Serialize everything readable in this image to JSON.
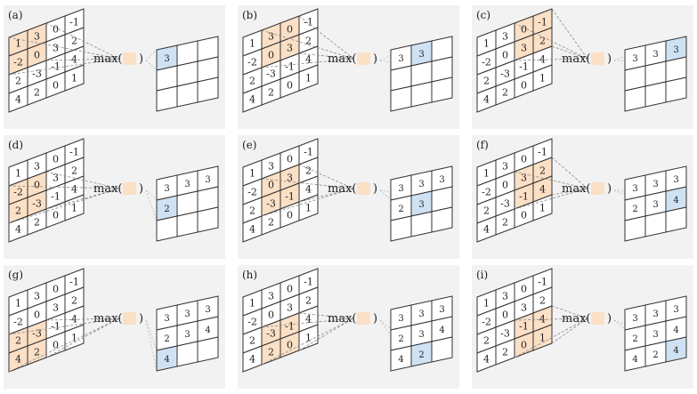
{
  "input_matrix": [
    [
      "1",
      "3",
      "0",
      "-1"
    ],
    [
      "-2",
      "0",
      "3",
      "2"
    ],
    [
      "2",
      "-3",
      "-1",
      "4"
    ],
    [
      "4",
      "2",
      "0",
      "1"
    ]
  ],
  "operation_label": "max(",
  "operation_close": ")",
  "colors": {
    "panel_bg": "#f2f2f2",
    "window_fill": "#fbe0c6",
    "result_fill": "#cfe2f3",
    "line": "#333333"
  },
  "panels": [
    {
      "tag": "(a)",
      "window": [
        0,
        0
      ],
      "output": [
        [
          "3",
          "",
          ""
        ],
        [
          "",
          "",
          ""
        ],
        [
          "",
          "",
          ""
        ]
      ],
      "current": [
        0,
        0
      ]
    },
    {
      "tag": "(b)",
      "window": [
        0,
        1
      ],
      "output": [
        [
          "3",
          "3",
          ""
        ],
        [
          "",
          "",
          ""
        ],
        [
          "",
          "",
          ""
        ]
      ],
      "current": [
        0,
        1
      ]
    },
    {
      "tag": "(c)",
      "window": [
        0,
        2
      ],
      "output": [
        [
          "3",
          "3",
          "3"
        ],
        [
          "",
          "",
          ""
        ],
        [
          "",
          "",
          ""
        ]
      ],
      "current": [
        0,
        2
      ]
    },
    {
      "tag": "(d)",
      "window": [
        1,
        0
      ],
      "output": [
        [
          "3",
          "3",
          "3"
        ],
        [
          "2",
          "",
          ""
        ],
        [
          "",
          "",
          ""
        ]
      ],
      "current": [
        1,
        0
      ]
    },
    {
      "tag": "(e)",
      "window": [
        1,
        1
      ],
      "output": [
        [
          "3",
          "3",
          "3"
        ],
        [
          "2",
          "3",
          ""
        ],
        [
          "",
          "",
          ""
        ]
      ],
      "current": [
        1,
        1
      ]
    },
    {
      "tag": "(f)",
      "window": [
        1,
        2
      ],
      "output": [
        [
          "3",
          "3",
          "3"
        ],
        [
          "2",
          "3",
          "4"
        ],
        [
          "",
          "",
          ""
        ]
      ],
      "current": [
        1,
        2
      ]
    },
    {
      "tag": "(g)",
      "window": [
        2,
        0
      ],
      "output": [
        [
          "3",
          "3",
          "3"
        ],
        [
          "2",
          "3",
          "4"
        ],
        [
          "4",
          "",
          ""
        ]
      ],
      "current": [
        2,
        0
      ]
    },
    {
      "tag": "(h)",
      "window": [
        2,
        1
      ],
      "output": [
        [
          "3",
          "3",
          "3"
        ],
        [
          "2",
          "3",
          "4"
        ],
        [
          "4",
          "2",
          ""
        ]
      ],
      "current": [
        2,
        1
      ]
    },
    {
      "tag": "(i)",
      "window": [
        2,
        2
      ],
      "output": [
        [
          "3",
          "3",
          "3"
        ],
        [
          "2",
          "3",
          "4"
        ],
        [
          "4",
          "2",
          "4"
        ]
      ],
      "current": [
        2,
        2
      ]
    }
  ]
}
